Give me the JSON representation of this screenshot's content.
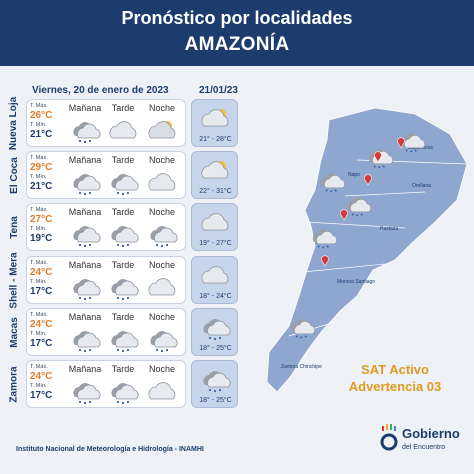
{
  "header": {
    "title": "Pronóstico por localidades",
    "region": "AMAZONÍA"
  },
  "dates": {
    "today": "Viernes, 20 de enero de 2023",
    "tomorrow": "21/01/23"
  },
  "labels": {
    "max": "T. Máx.",
    "min": "T. Mín.",
    "morning": "Mañana",
    "afternoon": "Tarde",
    "night": "Noche"
  },
  "rows": [
    {
      "name": "Nueva Loja",
      "max": "26°C",
      "min": "21°C",
      "icons": [
        "rain-cloud-icon",
        "cloud-icon",
        "partly-cloudy-night-icon"
      ],
      "next_range": "21° - 28°C",
      "next_icon": "partly-cloudy-icon"
    },
    {
      "name": "El Coca",
      "max": "29°C",
      "min": "21°C",
      "icons": [
        "rain-cloud-icon",
        "rain-cloud-icon",
        "cloud-icon"
      ],
      "next_range": "22° - 31°C",
      "next_icon": "partly-cloudy-icon"
    },
    {
      "name": "Tena",
      "max": "27°C",
      "min": "19°C",
      "icons": [
        "rain-cloud-icon",
        "rain-cloud-icon",
        "rain-cloud-icon"
      ],
      "next_range": "19° - 27°C",
      "next_icon": "cloud-icon"
    },
    {
      "name": "Shell - Mera",
      "max": "24°C",
      "min": "17°C",
      "icons": [
        "rain-cloud-icon",
        "rain-cloud-icon",
        "cloud-icon"
      ],
      "next_range": "18° - 24°C",
      "next_icon": "cloud-icon"
    },
    {
      "name": "Macas",
      "max": "24°C",
      "min": "17°C",
      "icons": [
        "rain-cloud-icon",
        "rain-cloud-icon",
        "rain-cloud-icon"
      ],
      "next_range": "18° - 25°C",
      "next_icon": "rain-cloud-icon"
    },
    {
      "name": "Zamora",
      "max": "24°C",
      "min": "17°C",
      "icons": [
        "rain-cloud-icon",
        "rain-cloud-icon",
        "cloud-icon"
      ],
      "next_range": "18° - 25°C",
      "next_icon": "rain-cloud-icon"
    }
  ],
  "map": {
    "places": [
      "Sucumbíos",
      "Napo",
      "Orellana",
      "Pastaza",
      "Morona Santiago",
      "Zamora Chinchipe"
    ]
  },
  "alert": {
    "line1": "SAT Activo",
    "line2": "Advertencia 03"
  },
  "footer": {
    "institute": "Instituto Nacional de Meteorología e Hidrología - INAMHI"
  },
  "logo": {
    "line1": "Gobierno",
    "line2": "del Encuentro"
  },
  "colors": {
    "navy": "#1d3c6e",
    "orange": "#e37b2a",
    "gold": "#e09a22",
    "map": "#8fa6cf"
  }
}
